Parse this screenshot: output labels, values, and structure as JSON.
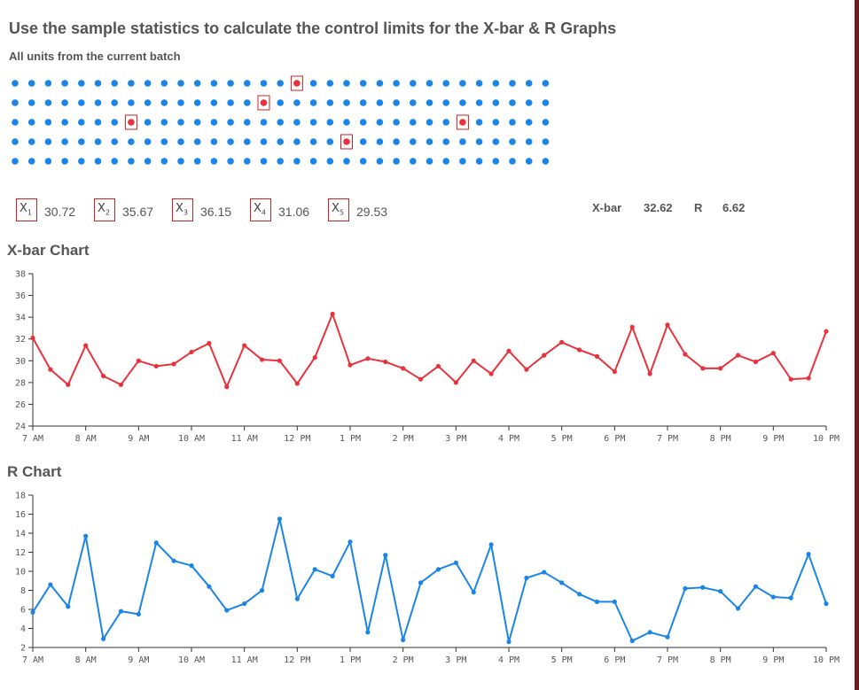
{
  "header": {
    "title": "Use the sample statistics to calculate the control limits for the X-bar & R Graphs",
    "subtitle": "All units from the current batch"
  },
  "units": {
    "rows": 5,
    "cols": 33,
    "dot_color": "#1a85e8",
    "selected_color": "#e8333c",
    "selected": [
      [
        0,
        17
      ],
      [
        1,
        15
      ],
      [
        2,
        7
      ],
      [
        2,
        27
      ],
      [
        3,
        20
      ]
    ]
  },
  "samples": [
    {
      "label": "X",
      "sub": "1",
      "value": "30.72"
    },
    {
      "label": "X",
      "sub": "2",
      "value": "35.67"
    },
    {
      "label": "X",
      "sub": "3",
      "value": "36.15"
    },
    {
      "label": "X",
      "sub": "4",
      "value": "31.06"
    },
    {
      "label": "X",
      "sub": "5",
      "value": "29.53"
    }
  ],
  "stats": {
    "xbar_label": "X-bar",
    "xbar_value": "32.62",
    "r_label": "R",
    "r_value": "6.62"
  },
  "chart_data": [
    {
      "type": "line",
      "title": "X-bar Chart",
      "color": "#e8333c",
      "ylim": [
        24,
        38
      ],
      "yticks": [
        24,
        26,
        28,
        30,
        32,
        34,
        36,
        38
      ],
      "xlim": [
        7,
        22
      ],
      "xticks": [
        7,
        8,
        9,
        10,
        11,
        12,
        13,
        14,
        15,
        16,
        17,
        18,
        19,
        20,
        21,
        22
      ],
      "xtick_labels": [
        "7 AM",
        "8 AM",
        "9 AM",
        "10 AM",
        "11 AM",
        "12 PM",
        "1 PM",
        "2 PM",
        "3 PM",
        "4 PM",
        "5 PM",
        "6 PM",
        "7 PM",
        "8 PM",
        "9 PM",
        "10 PM"
      ],
      "values": [
        32.1,
        29.2,
        27.8,
        31.4,
        28.6,
        27.8,
        30.0,
        29.5,
        29.7,
        30.8,
        31.6,
        27.6,
        31.4,
        30.1,
        30.0,
        27.9,
        30.3,
        34.3,
        29.6,
        30.2,
        29.9,
        29.3,
        28.3,
        29.5,
        28.0,
        30.0,
        28.8,
        30.9,
        29.2,
        30.5,
        31.7,
        31.0,
        30.4,
        29.0,
        33.1,
        28.8,
        33.3,
        30.6,
        29.3,
        29.3,
        30.5,
        29.9,
        30.7,
        28.3,
        28.4,
        32.7
      ]
    },
    {
      "type": "line",
      "title": "R Chart",
      "color": "#1a85e8",
      "ylim": [
        2,
        18
      ],
      "yticks": [
        2,
        4,
        6,
        8,
        10,
        12,
        14,
        16,
        18
      ],
      "xlim": [
        7,
        22
      ],
      "xticks": [
        7,
        8,
        9,
        10,
        11,
        12,
        13,
        14,
        15,
        16,
        17,
        18,
        19,
        20,
        21,
        22
      ],
      "xtick_labels": [
        "7 AM",
        "8 AM",
        "9 AM",
        "10 AM",
        "11 AM",
        "12 PM",
        "1 PM",
        "2 PM",
        "3 PM",
        "4 PM",
        "5 PM",
        "6 PM",
        "7 PM",
        "8 PM",
        "9 PM",
        "10 PM"
      ],
      "values": [
        5.7,
        8.6,
        6.3,
        13.7,
        2.9,
        5.8,
        5.5,
        13.0,
        11.1,
        10.6,
        8.4,
        5.9,
        6.6,
        8.0,
        15.5,
        7.1,
        10.2,
        9.5,
        13.1,
        3.6,
        11.7,
        2.8,
        8.8,
        10.2,
        10.9,
        7.8,
        12.8,
        2.6,
        9.3,
        9.9,
        8.8,
        7.6,
        6.8,
        6.8,
        2.7,
        3.6,
        3.1,
        8.2,
        8.3,
        7.9,
        6.1,
        8.4,
        7.3,
        7.2,
        11.8,
        6.6
      ]
    }
  ]
}
